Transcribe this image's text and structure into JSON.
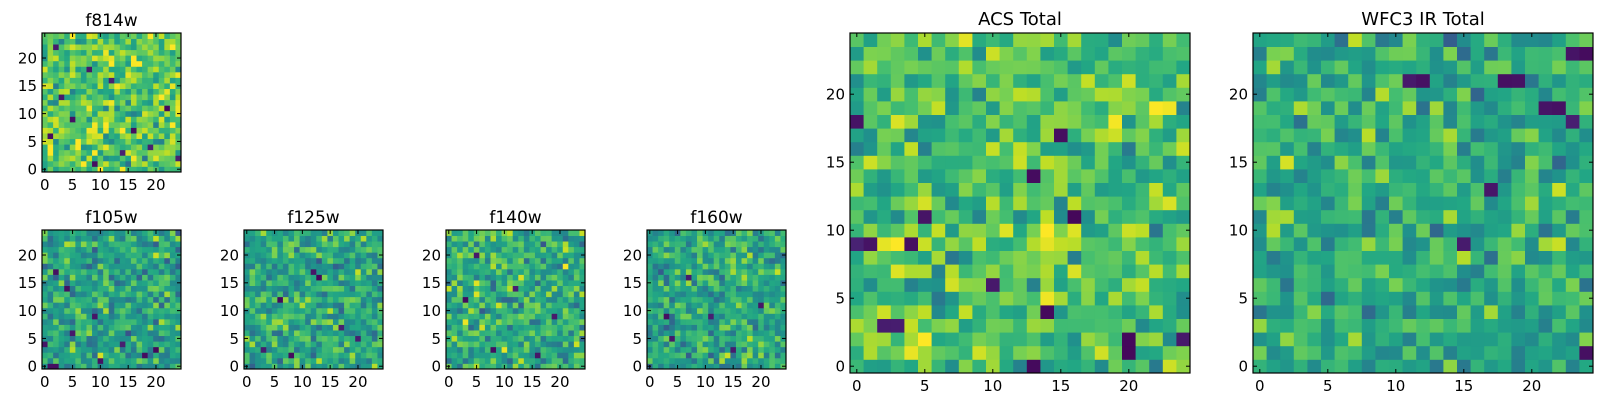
{
  "figure": {
    "description_title": ""
  },
  "colors": {
    "colormap": "viridis",
    "frame": "#000000",
    "background": "#ffffff"
  },
  "chart_data": [
    {
      "type": "heatmap",
      "title": "f814w",
      "grid_size": [
        25,
        25
      ],
      "xlim": [
        -0.5,
        24.5
      ],
      "ylim": [
        -0.5,
        24.5
      ],
      "xticks": [
        0,
        5,
        10,
        15,
        20
      ],
      "yticks": [
        0,
        5,
        10,
        15,
        20
      ],
      "xtick_labels": [
        "0",
        "5",
        "10",
        "15",
        "20"
      ],
      "ytick_labels": [
        "0",
        "5",
        "10",
        "15",
        "20"
      ],
      "origin": "lower",
      "colormap": "viridis",
      "seed": 11,
      "mean_level": 0.74,
      "spread": 0.17,
      "dark_pixels": [
        [
          3,
          13
        ],
        [
          5,
          9
        ],
        [
          8,
          18
        ],
        [
          2,
          22
        ],
        [
          16,
          7
        ],
        [
          9,
          1
        ],
        [
          19,
          4
        ],
        [
          1,
          6
        ],
        [
          12,
          16
        ],
        [
          22,
          11
        ],
        [
          14,
          3
        ],
        [
          24,
          2
        ]
      ]
    },
    {
      "type": "heatmap",
      "title": "f105w",
      "grid_size": [
        25,
        25
      ],
      "xlim": [
        -0.5,
        24.5
      ],
      "ylim": [
        -0.5,
        24.5
      ],
      "xticks": [
        0,
        5,
        10,
        15,
        20
      ],
      "yticks": [
        0,
        5,
        10,
        15,
        20
      ],
      "xtick_labels": [
        "0",
        "5",
        "10",
        "15",
        "20"
      ],
      "ytick_labels": [
        "0",
        "5",
        "10",
        "15",
        "20"
      ],
      "origin": "lower",
      "colormap": "viridis",
      "seed": 23,
      "mean_level": 0.58,
      "spread": 0.16,
      "dark_pixels": [
        [
          0,
          4
        ],
        [
          1,
          0
        ],
        [
          2,
          0
        ],
        [
          4,
          14
        ],
        [
          5,
          6
        ],
        [
          2,
          17
        ],
        [
          9,
          9
        ],
        [
          14,
          4
        ],
        [
          18,
          2
        ],
        [
          20,
          3
        ],
        [
          10,
          1
        ]
      ]
    },
    {
      "type": "heatmap",
      "title": "f125w",
      "grid_size": [
        25,
        25
      ],
      "xlim": [
        -0.5,
        24.5
      ],
      "ylim": [
        -0.5,
        24.5
      ],
      "xticks": [
        0,
        5,
        10,
        15,
        20
      ],
      "yticks": [
        0,
        5,
        10,
        15,
        20
      ],
      "xtick_labels": [
        "0",
        "5",
        "10",
        "15",
        "20"
      ],
      "ytick_labels": [
        "0",
        "5",
        "10",
        "15",
        "20"
      ],
      "origin": "lower",
      "colormap": "viridis",
      "seed": 37,
      "mean_level": 0.6,
      "spread": 0.16,
      "dark_pixels": [
        [
          12,
          17
        ],
        [
          13,
          16
        ],
        [
          8,
          2
        ],
        [
          3,
          3
        ],
        [
          17,
          7
        ],
        [
          6,
          12
        ],
        [
          20,
          5
        ]
      ]
    },
    {
      "type": "heatmap",
      "title": "f140w",
      "grid_size": [
        25,
        25
      ],
      "xlim": [
        -0.5,
        24.5
      ],
      "ylim": [
        -0.5,
        24.5
      ],
      "xticks": [
        0,
        5,
        10,
        15,
        20
      ],
      "yticks": [
        0,
        5,
        10,
        15,
        20
      ],
      "xtick_labels": [
        "0",
        "5",
        "10",
        "15",
        "20"
      ],
      "ytick_labels": [
        "0",
        "5",
        "10",
        "15",
        "20"
      ],
      "origin": "lower",
      "colormap": "viridis",
      "seed": 41,
      "mean_level": 0.62,
      "spread": 0.16,
      "dark_pixels": [
        [
          3,
          12
        ],
        [
          12,
          14
        ],
        [
          8,
          3
        ],
        [
          16,
          2
        ],
        [
          5,
          20
        ],
        [
          19,
          9
        ]
      ]
    },
    {
      "type": "heatmap",
      "title": "f160w",
      "grid_size": [
        25,
        25
      ],
      "xlim": [
        -0.5,
        24.5
      ],
      "ylim": [
        -0.5,
        24.5
      ],
      "xticks": [
        0,
        5,
        10,
        15,
        20
      ],
      "yticks": [
        0,
        5,
        10,
        15,
        20
      ],
      "xtick_labels": [
        "0",
        "5",
        "10",
        "15",
        "20"
      ],
      "ytick_labels": [
        "0",
        "5",
        "10",
        "15",
        "20"
      ],
      "origin": "lower",
      "colormap": "viridis",
      "seed": 53,
      "mean_level": 0.6,
      "spread": 0.16,
      "dark_pixels": [
        [
          3,
          9
        ],
        [
          4,
          5
        ],
        [
          11,
          9
        ],
        [
          15,
          3
        ],
        [
          7,
          16
        ],
        [
          20,
          11
        ]
      ]
    },
    {
      "type": "heatmap",
      "title": "ACS Total",
      "grid_size": [
        25,
        25
      ],
      "xlim": [
        -0.5,
        24.5
      ],
      "ylim": [
        -0.5,
        24.5
      ],
      "xticks": [
        0,
        5,
        10,
        15,
        20
      ],
      "yticks": [
        0,
        5,
        10,
        15,
        20
      ],
      "xtick_labels": [
        "0",
        "5",
        "10",
        "15",
        "20"
      ],
      "ytick_labels": [
        "0",
        "5",
        "10",
        "15",
        "20"
      ],
      "origin": "lower",
      "colormap": "viridis",
      "seed": 67,
      "mean_level": 0.72,
      "spread": 0.16,
      "dark_pixels": [
        [
          0,
          18
        ],
        [
          0,
          9
        ],
        [
          1,
          9
        ],
        [
          4,
          9
        ],
        [
          2,
          3
        ],
        [
          5,
          11
        ],
        [
          13,
          14
        ],
        [
          10,
          6
        ],
        [
          16,
          11
        ],
        [
          20,
          2
        ],
        [
          20,
          1
        ],
        [
          24,
          2
        ],
        [
          13,
          0
        ],
        [
          15,
          17
        ],
        [
          3,
          3
        ],
        [
          14,
          4
        ]
      ]
    },
    {
      "type": "heatmap",
      "title": "WFC3 IR Total",
      "grid_size": [
        25,
        25
      ],
      "xlim": [
        -0.5,
        24.5
      ],
      "ylim": [
        -0.5,
        24.5
      ],
      "xticks": [
        0,
        5,
        10,
        15,
        20
      ],
      "yticks": [
        0,
        5,
        10,
        15,
        20
      ],
      "xtick_labels": [
        "0",
        "5",
        "10",
        "15",
        "20"
      ],
      "ytick_labels": [
        "0",
        "5",
        "10",
        "15",
        "20"
      ],
      "origin": "lower",
      "colormap": "viridis",
      "seed": 79,
      "mean_level": 0.62,
      "spread": 0.15,
      "dark_pixels": [
        [
          23,
          23
        ],
        [
          24,
          23
        ],
        [
          18,
          21
        ],
        [
          19,
          21
        ],
        [
          12,
          21
        ],
        [
          11,
          21
        ],
        [
          21,
          19
        ],
        [
          23,
          18
        ],
        [
          24,
          1
        ],
        [
          15,
          9
        ],
        [
          22,
          19
        ],
        [
          17,
          13
        ]
      ]
    }
  ]
}
